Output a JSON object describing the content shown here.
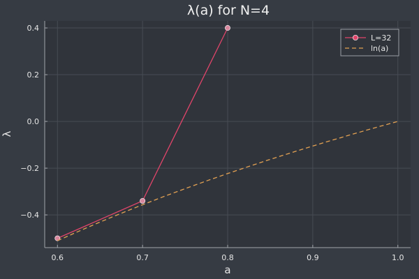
{
  "chart_data": {
    "type": "line",
    "title": "λ(a) for N=4",
    "xlabel": "a",
    "ylabel": "λ",
    "xlim": [
      0.585,
      1.015
    ],
    "ylim": [
      -0.54,
      0.43
    ],
    "xticks": [
      {
        "value": 0.6,
        "label": "0.6"
      },
      {
        "value": 0.7,
        "label": "0.7"
      },
      {
        "value": 0.8,
        "label": "0.8"
      },
      {
        "value": 0.9,
        "label": "0.9"
      },
      {
        "value": 1.0,
        "label": "1.0"
      }
    ],
    "yticks": [
      {
        "value": -0.4,
        "label": "−0.4"
      },
      {
        "value": -0.2,
        "label": "−0.2"
      },
      {
        "value": 0.0,
        "label": "0.0"
      },
      {
        "value": 0.2,
        "label": "0.2"
      },
      {
        "value": 0.4,
        "label": "0.4"
      }
    ],
    "grid": true,
    "legend_position": "top-right",
    "series": [
      {
        "name": "L=32",
        "style": "line-marker",
        "color": "#e0456a",
        "marker_color": "#d9879e",
        "x": [
          0.6,
          0.7,
          0.8
        ],
        "y": [
          -0.5,
          -0.34,
          0.4
        ]
      },
      {
        "name": "ln(a)",
        "style": "dashed",
        "color": "#e3a152",
        "function": "ln",
        "x_range": [
          0.6,
          1.0
        ]
      }
    ]
  },
  "colors": {
    "background": "#363b43",
    "plot_area": "#30343b",
    "axis": "#a0a4aa",
    "grid": "#474c54"
  }
}
